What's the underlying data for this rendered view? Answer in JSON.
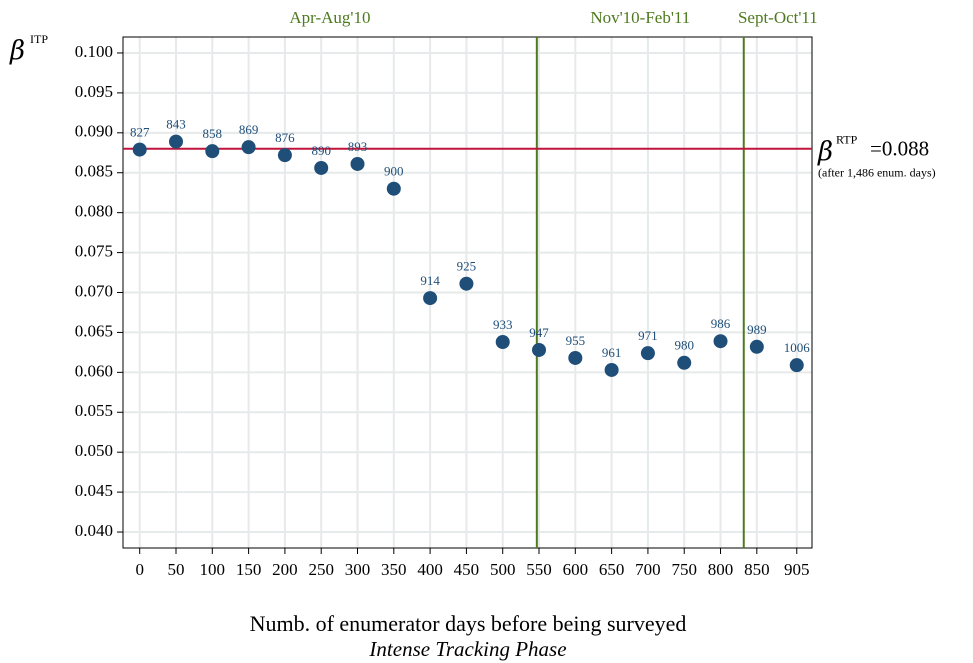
{
  "chart_data": {
    "type": "scatter",
    "ylabel": "β",
    "ylabel_sup": "ITP",
    "xlabel": "Numb. of enumerator days before being surveyed",
    "subtitle": "Intense Tracking Phase",
    "x": [
      0,
      50,
      100,
      150,
      200,
      250,
      300,
      350,
      400,
      450,
      500,
      550,
      600,
      650,
      700,
      750,
      800,
      850,
      905
    ],
    "values": [
      0.0879,
      0.0889,
      0.0877,
      0.0882,
      0.0872,
      0.0856,
      0.0861,
      0.083,
      0.0693,
      0.0711,
      0.0638,
      0.0628,
      0.0618,
      0.0603,
      0.0624,
      0.0612,
      0.0639,
      0.0632,
      0.0609
    ],
    "point_labels": [
      827,
      843,
      858,
      869,
      876,
      890,
      893,
      900,
      914,
      925,
      933,
      947,
      955,
      961,
      971,
      980,
      986,
      989,
      1006
    ],
    "color": "#1f4e79",
    "xlim": [
      -23,
      926
    ],
    "ylim": [
      0.038,
      0.102
    ],
    "xticks": [
      0,
      50,
      100,
      150,
      200,
      250,
      300,
      350,
      400,
      450,
      500,
      550,
      600,
      650,
      700,
      750,
      800,
      850,
      905
    ],
    "yticks": [
      {
        "value": 0.04,
        "label": "0.040"
      },
      0.045,
      {
        "value": 0.05,
        "label": "0.050"
      },
      0.055,
      {
        "value": 0.06,
        "label": "0.060"
      },
      0.065,
      {
        "value": 0.07,
        "label": "0.070"
      },
      0.075,
      {
        "value": 0.08,
        "label": "0.080"
      },
      0.085,
      {
        "value": 0.09,
        "label": "0.090"
      },
      0.095,
      {
        "value": 0.1,
        "label": "0.100"
      }
    ],
    "grid": true,
    "reference": {
      "value": 0.088,
      "color": "#c0143c",
      "symbol": "β",
      "sup": "RTP",
      "label": "=0.088",
      "note": "(after 1,486 enum. days)"
    },
    "phases": {
      "color": "#4d7a1e",
      "boundaries": [
        547,
        832
      ],
      "labels": [
        "Apr-Aug'10",
        "Nov'10-Feb'11",
        "Sept-Oct'11"
      ]
    }
  }
}
